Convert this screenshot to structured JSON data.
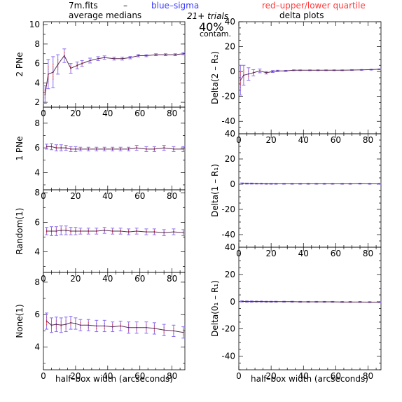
{
  "header": {
    "file": "7m.fits",
    "dash": "–",
    "blue_label": "blue–sigma",
    "red_label": "red–upper/lower quartile",
    "blue_color": "#3a3aff",
    "red_color": "#ff3a3a",
    "left_title": "average medians",
    "right_title": "delta plots",
    "trials": "21+ trials",
    "contam_pct": "40%",
    "contam_label": "contam."
  },
  "x_axis_label": "half–box width (arcseconds)",
  "colors": {
    "line": "#5a2a55",
    "sigma_bar": "#8b6cf0",
    "quartile_dash": "#e84848",
    "axis": "#000000"
  },
  "chart_data": [
    {
      "type": "line",
      "panel": "left-1",
      "ylabel": "2 PNe",
      "xlim": [
        0,
        88
      ],
      "ylim": [
        1.5,
        10.3
      ],
      "xticks": [
        "0",
        "20",
        "40",
        "60",
        "80"
      ],
      "yticks": [
        2,
        4,
        6,
        8,
        10
      ],
      "x": [
        1,
        3,
        6,
        9,
        13,
        17,
        21,
        24,
        29,
        34,
        38,
        44,
        49,
        54,
        59,
        64,
        70,
        76,
        82,
        87
      ],
      "y": [
        2.8,
        4.9,
        5.1,
        5.9,
        6.8,
        5.5,
        5.8,
        6.0,
        6.3,
        6.5,
        6.6,
        6.5,
        6.5,
        6.6,
        6.8,
        6.8,
        6.9,
        6.9,
        6.9,
        7.0
      ],
      "err": [
        0.9,
        1.5,
        1.6,
        1.0,
        0.7,
        0.5,
        0.35,
        0.3,
        0.25,
        0.2,
        0.18,
        0.15,
        0.15,
        0.12,
        0.12,
        0.1,
        0.1,
        0.1,
        0.1,
        0.1
      ]
    },
    {
      "type": "line",
      "panel": "left-2",
      "ylabel": "1 PNe",
      "xlim": [
        0,
        88
      ],
      "ylim": [
        2.6,
        9.3
      ],
      "xticks": [
        "0",
        "20",
        "40",
        "60",
        "80"
      ],
      "yticks": [
        4,
        6,
        8
      ],
      "x": [
        2,
        5,
        8,
        11,
        14,
        17,
        20,
        23,
        28,
        33,
        38,
        43,
        48,
        53,
        58,
        64,
        69,
        75,
        81,
        87
      ],
      "y": [
        6.1,
        6.1,
        6.0,
        6.0,
        6.0,
        5.9,
        5.9,
        5.9,
        5.9,
        5.9,
        5.9,
        5.9,
        5.9,
        5.9,
        6.0,
        5.9,
        5.9,
        6.0,
        5.9,
        5.9
      ],
      "err": [
        0.2,
        0.25,
        0.25,
        0.25,
        0.2,
        0.2,
        0.2,
        0.15,
        0.15,
        0.15,
        0.15,
        0.15,
        0.15,
        0.15,
        0.2,
        0.2,
        0.2,
        0.2,
        0.2,
        0.2
      ]
    },
    {
      "type": "line",
      "panel": "left-3",
      "ylabel": "Random(1)",
      "xlim": [
        0,
        88
      ],
      "ylim": [
        2.6,
        8.2
      ],
      "xticks": [
        "0",
        "20",
        "40",
        "60",
        "80"
      ],
      "yticks": [
        4,
        6,
        8
      ],
      "x": [
        2,
        5,
        8,
        11,
        14,
        17,
        20,
        23,
        28,
        33,
        38,
        43,
        48,
        53,
        58,
        64,
        69,
        75,
        81,
        87
      ],
      "y": [
        5.4,
        5.4,
        5.4,
        5.45,
        5.45,
        5.4,
        5.4,
        5.4,
        5.4,
        5.4,
        5.45,
        5.4,
        5.4,
        5.35,
        5.4,
        5.35,
        5.35,
        5.3,
        5.35,
        5.3
      ],
      "err": [
        0.25,
        0.3,
        0.3,
        0.3,
        0.3,
        0.25,
        0.25,
        0.2,
        0.2,
        0.2,
        0.2,
        0.2,
        0.2,
        0.2,
        0.2,
        0.2,
        0.2,
        0.2,
        0.2,
        0.2
      ]
    },
    {
      "type": "line",
      "panel": "left-4",
      "ylabel": "None(1)",
      "xlim": [
        0,
        88
      ],
      "ylim": [
        2.6,
        8.6
      ],
      "xticks": [
        "0",
        "20",
        "40",
        "60",
        "80"
      ],
      "yticks": [
        4,
        6,
        8
      ],
      "x": [
        2,
        5,
        8,
        11,
        14,
        17,
        20,
        23,
        28,
        33,
        38,
        43,
        48,
        53,
        58,
        64,
        69,
        75,
        81,
        87
      ],
      "y": [
        5.6,
        5.35,
        5.4,
        5.35,
        5.4,
        5.5,
        5.45,
        5.35,
        5.35,
        5.3,
        5.3,
        5.25,
        5.3,
        5.2,
        5.2,
        5.2,
        5.15,
        5.05,
        5.0,
        4.9
      ],
      "err": [
        0.5,
        0.45,
        0.45,
        0.45,
        0.45,
        0.4,
        0.35,
        0.35,
        0.35,
        0.35,
        0.35,
        0.3,
        0.3,
        0.35,
        0.35,
        0.35,
        0.35,
        0.35,
        0.35,
        0.35
      ]
    },
    {
      "type": "line",
      "panel": "right-1",
      "ylabel": "Delta(2 – R₂)",
      "xlim": [
        0,
        88
      ],
      "ylim": [
        -50,
        40
      ],
      "xticks": [
        "0",
        "20",
        "40",
        "60",
        "80"
      ],
      "yticks": [
        -40,
        -20,
        0,
        20,
        40
      ],
      "x": [
        1,
        3,
        6,
        9,
        13,
        17,
        21,
        24,
        29,
        34,
        38,
        44,
        49,
        54,
        59,
        64,
        70,
        76,
        82,
        87
      ],
      "y": [
        -7,
        -3,
        -2,
        -1,
        0.5,
        -1,
        0,
        0.5,
        0.5,
        1,
        1,
        1,
        1,
        1,
        1,
        1,
        1.2,
        1.3,
        1.5,
        1.8
      ],
      "err": [
        12,
        8,
        5,
        2.5,
        1.5,
        1,
        0.8,
        0.5,
        0.4,
        0.3,
        0.3,
        0.3,
        0.3,
        0.3,
        0.3,
        0.3,
        0.3,
        0.3,
        0.3,
        0.3
      ]
    },
    {
      "type": "line",
      "panel": "right-2",
      "ylabel": "Delta(1 – R₁)",
      "xlim": [
        0,
        88
      ],
      "ylim": [
        -50,
        40
      ],
      "xticks": [
        "0",
        "20",
        "40",
        "60",
        "80"
      ],
      "yticks": [
        -40,
        -20,
        0,
        20,
        40
      ],
      "x": [
        2,
        5,
        8,
        11,
        14,
        17,
        20,
        23,
        28,
        33,
        38,
        43,
        48,
        53,
        58,
        64,
        69,
        75,
        81,
        87
      ],
      "y": [
        0.6,
        0.5,
        0.5,
        0.4,
        0.4,
        0.3,
        0.3,
        0.3,
        0.3,
        0.3,
        0.3,
        0.3,
        0.3,
        0.3,
        0.3,
        0.3,
        0.3,
        0.4,
        0.3,
        0.3
      ],
      "err": [
        0.4,
        0.4,
        0.4,
        0.3,
        0.3,
        0.3,
        0.3,
        0.3,
        0.3,
        0.3,
        0.3,
        0.3,
        0.3,
        0.3,
        0.3,
        0.3,
        0.3,
        0.3,
        0.3,
        0.3
      ]
    },
    {
      "type": "line",
      "panel": "right-3",
      "ylabel": "Delta(0₁ – R₁)",
      "xlim": [
        0,
        88
      ],
      "ylim": [
        -50,
        40
      ],
      "xticks": [
        "0",
        "20",
        "40",
        "60",
        "80"
      ],
      "yticks": [
        -40,
        -20,
        0,
        20,
        40
      ],
      "x": [
        2,
        5,
        8,
        11,
        14,
        17,
        20,
        23,
        28,
        33,
        38,
        43,
        48,
        53,
        58,
        64,
        69,
        75,
        81,
        87
      ],
      "y": [
        0.2,
        0.1,
        0.1,
        0.1,
        0.1,
        0,
        0,
        0,
        0,
        0,
        -0.1,
        -0.1,
        -0.1,
        -0.1,
        -0.1,
        -0.2,
        -0.2,
        -0.2,
        -0.3,
        -0.3
      ],
      "err": [
        0.4,
        0.4,
        0.4,
        0.3,
        0.3,
        0.3,
        0.3,
        0.3,
        0.3,
        0.3,
        0.3,
        0.3,
        0.3,
        0.3,
        0.3,
        0.3,
        0.3,
        0.3,
        0.3,
        0.3
      ]
    }
  ]
}
